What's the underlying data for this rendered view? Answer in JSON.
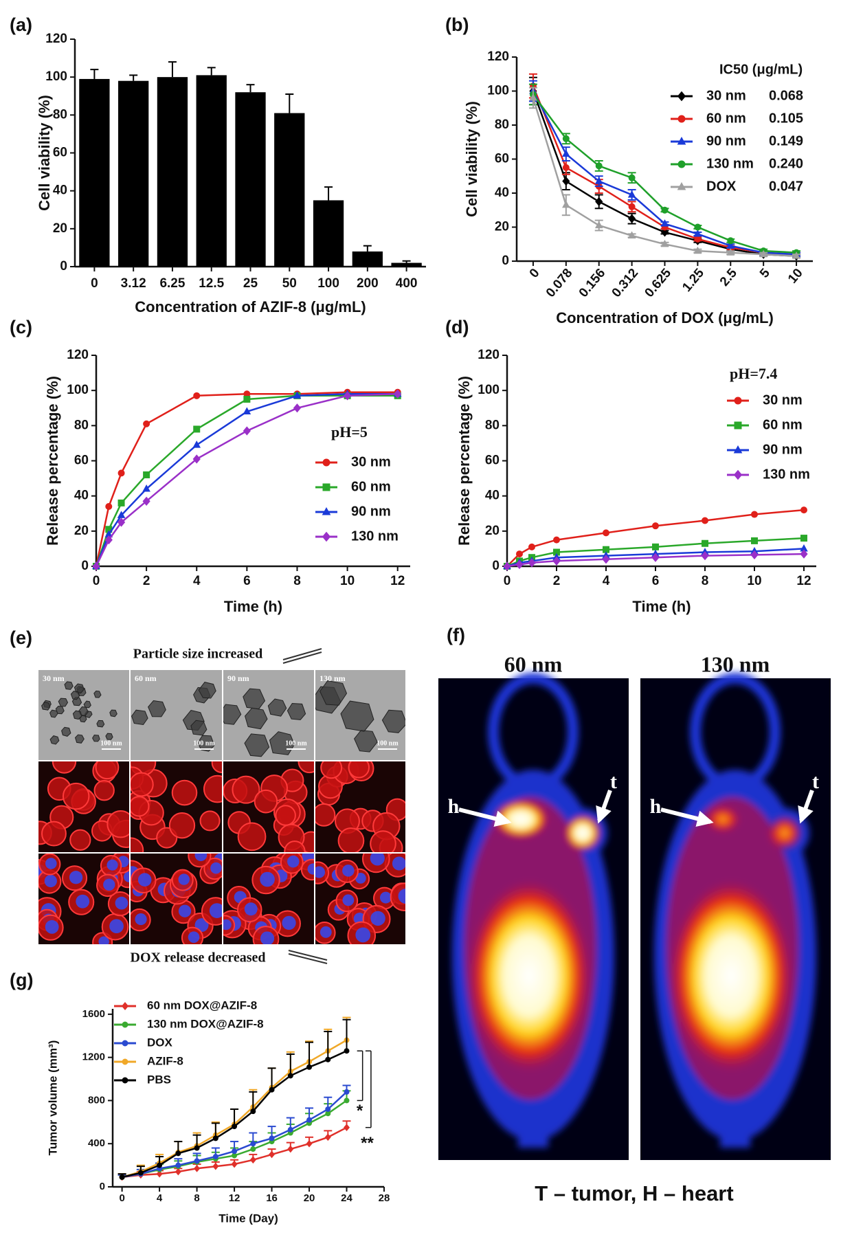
{
  "chart_data": [
    {
      "type": "bar",
      "panel_label": "(a)",
      "x_label": "Concentration of AZIF-8 (μg/mL)",
      "y_label": "Cell viability (%)",
      "categories": [
        "0",
        "3.12",
        "6.25",
        "12.5",
        "25",
        "50",
        "100",
        "200",
        "400"
      ],
      "values": [
        99,
        98,
        100,
        101,
        92,
        81,
        35,
        8,
        2
      ],
      "errors": [
        5,
        3,
        8,
        4,
        4,
        10,
        7,
        3,
        1
      ],
      "error_bars": "up",
      "color": "#000000",
      "ylim": [
        0,
        120
      ],
      "yticks": [
        0,
        20,
        40,
        60,
        80,
        100,
        120
      ]
    },
    {
      "type": "line",
      "panel_label": "(b)",
      "x_label": "Concentration of DOX (μg/mL)",
      "y_label": "Cell viability (%)",
      "categories": [
        "0",
        "0.078",
        "0.156",
        "0.312",
        "0.625",
        "1.25",
        "2.5",
        "5",
        "10"
      ],
      "ylim": [
        0,
        120
      ],
      "yticks": [
        0,
        20,
        40,
        60,
        80,
        100,
        120
      ],
      "legend": "upper right",
      "legend_title": "IC50 (μg/mL)",
      "error_bars": "both",
      "series": [
        {
          "name": "30 nm",
          "ic50": "0.068",
          "color": "#000000",
          "marker": "diamond",
          "values": [
            100,
            47,
            35,
            25,
            17,
            12,
            7,
            4,
            3
          ],
          "errors": [
            8,
            5,
            4,
            3,
            1,
            1,
            1,
            1,
            1
          ]
        },
        {
          "name": "60 nm",
          "ic50": "0.105",
          "color": "#e0201a",
          "marker": "circle",
          "values": [
            103,
            55,
            44,
            32,
            20,
            13,
            8,
            5,
            4
          ],
          "errors": [
            7,
            4,
            4,
            3,
            1,
            1,
            1,
            1,
            1
          ]
        },
        {
          "name": "90 nm",
          "ic50": "0.149",
          "color": "#1a3ad8",
          "marker": "triangle",
          "values": [
            100,
            63,
            47,
            39,
            22,
            16,
            9,
            5,
            4
          ],
          "errors": [
            6,
            4,
            3,
            3,
            1,
            1,
            1,
            1,
            1
          ]
        },
        {
          "name": "130 nm",
          "ic50": "0.240",
          "color": "#1fa02a",
          "marker": "circle",
          "values": [
            98,
            72,
            56,
            49,
            30,
            20,
            12,
            6,
            5
          ],
          "errors": [
            6,
            3,
            3,
            3,
            1,
            1,
            1,
            1,
            1
          ]
        },
        {
          "name": "DOX",
          "ic50": "0.047",
          "color": "#a0a0a0",
          "marker": "triangle",
          "values": [
            96,
            33,
            21,
            15,
            10,
            6,
            5,
            4,
            3
          ],
          "errors": [
            6,
            6,
            3,
            1,
            1,
            1,
            1,
            1,
            1
          ]
        }
      ]
    },
    {
      "type": "line",
      "panel_label": "(c)",
      "x_label": "Time (h)",
      "y_label": "Release percentage (%)",
      "x": [
        0,
        0.5,
        1,
        2,
        4,
        6,
        8,
        10,
        12
      ],
      "xlim": [
        0,
        12.5
      ],
      "xticks": [
        0,
        2,
        4,
        6,
        8,
        10,
        12
      ],
      "ylim": [
        0,
        120
      ],
      "yticks": [
        0,
        20,
        40,
        60,
        80,
        100,
        120
      ],
      "legend": "lower right",
      "legend_title": "pH=5",
      "series": [
        {
          "name": "30 nm",
          "color": "#e0201a",
          "marker": "circle",
          "values": [
            0,
            34,
            53,
            81,
            97,
            98,
            98,
            99,
            99
          ]
        },
        {
          "name": "60 nm",
          "color": "#2aa82a",
          "marker": "square",
          "values": [
            0,
            21,
            36,
            52,
            78,
            95,
            97,
            97,
            97
          ]
        },
        {
          "name": "90 nm",
          "color": "#1a3ad8",
          "marker": "triangle",
          "values": [
            0,
            18,
            29,
            44,
            69,
            88,
            97,
            98,
            98
          ]
        },
        {
          "name": "130 nm",
          "color": "#9a30c8",
          "marker": "diamond",
          "values": [
            0,
            15,
            25,
            37,
            61,
            77,
            90,
            97,
            98
          ]
        }
      ]
    },
    {
      "type": "line",
      "panel_label": "(d)",
      "x_label": "Time (h)",
      "y_label": "Release percentage (%)",
      "x": [
        0,
        0.5,
        1,
        2,
        4,
        6,
        8,
        10,
        12
      ],
      "xlim": [
        0,
        12.5
      ],
      "xticks": [
        0,
        2,
        4,
        6,
        8,
        10,
        12
      ],
      "ylim": [
        0,
        120
      ],
      "yticks": [
        0,
        20,
        40,
        60,
        80,
        100,
        120
      ],
      "legend": "upper right",
      "legend_title": "pH=7.4",
      "series": [
        {
          "name": "30 nm",
          "color": "#e0201a",
          "marker": "circle",
          "values": [
            0,
            7,
            11,
            15,
            19,
            23,
            26,
            29.5,
            32
          ]
        },
        {
          "name": "60 nm",
          "color": "#2aa82a",
          "marker": "square",
          "values": [
            0,
            3,
            5,
            8,
            9.5,
            11,
            13,
            14.5,
            16
          ]
        },
        {
          "name": "90 nm",
          "color": "#1a3ad8",
          "marker": "triangle",
          "values": [
            0,
            2,
            3,
            5,
            6,
            7,
            8,
            8.5,
            10
          ]
        },
        {
          "name": "130 nm",
          "color": "#9a30c8",
          "marker": "diamond",
          "values": [
            0,
            1,
            2,
            3,
            4,
            5,
            6,
            6.5,
            7
          ]
        }
      ]
    },
    {
      "type": "line",
      "panel_label": "(g)",
      "x_label": "Time (Day)",
      "y_label": "Tumor volume (mm³)",
      "x": [
        0,
        2,
        4,
        6,
        8,
        10,
        12,
        14,
        16,
        18,
        20,
        22,
        24
      ],
      "xlim": [
        -1,
        28
      ],
      "xticks": [
        0,
        4,
        8,
        12,
        16,
        20,
        24,
        28
      ],
      "ylim": [
        0,
        1650
      ],
      "yticks": [
        0,
        400,
        800,
        1200,
        1600
      ],
      "legend": "upper left",
      "error_bars": "up",
      "annotations": [
        "*",
        "**"
      ],
      "series": [
        {
          "name": "60 nm DOX@AZIF-8",
          "color": "#e0302a",
          "marker": "diamond",
          "values": [
            90,
            110,
            120,
            140,
            170,
            190,
            210,
            250,
            300,
            350,
            400,
            460,
            550
          ],
          "errors": [
            20,
            30,
            30,
            30,
            40,
            40,
            40,
            50,
            50,
            60,
            60,
            60,
            60
          ]
        },
        {
          "name": "130 nm DOX@AZIF-8",
          "color": "#3aaa30",
          "marker": "circle",
          "values": [
            90,
            120,
            160,
            190,
            230,
            260,
            290,
            350,
            420,
            500,
            590,
            680,
            800
          ],
          "errors": [
            20,
            40,
            50,
            50,
            60,
            60,
            70,
            70,
            80,
            80,
            90,
            90,
            90
          ]
        },
        {
          "name": "DOX",
          "color": "#2a4ad0",
          "marker": "circle",
          "values": [
            90,
            120,
            170,
            200,
            240,
            280,
            330,
            400,
            450,
            530,
            620,
            720,
            880
          ],
          "errors": [
            20,
            40,
            50,
            60,
            70,
            80,
            90,
            100,
            110,
            110,
            110,
            110,
            60
          ]
        },
        {
          "name": "AZIF-8",
          "color": "#f0a828",
          "marker": "circle",
          "values": [
            90,
            140,
            220,
            320,
            380,
            480,
            580,
            740,
            920,
            1070,
            1160,
            1260,
            1360
          ],
          "errors": [
            30,
            60,
            80,
            100,
            120,
            120,
            140,
            160,
            180,
            180,
            190,
            200,
            210
          ]
        },
        {
          "name": "PBS",
          "color": "#000000",
          "marker": "circle",
          "values": [
            90,
            130,
            200,
            310,
            360,
            450,
            560,
            700,
            900,
            1030,
            1110,
            1180,
            1260
          ],
          "errors": [
            30,
            60,
            80,
            110,
            120,
            140,
            160,
            180,
            200,
            200,
            230,
            260,
            290
          ]
        }
      ]
    }
  ],
  "figure_e": {
    "label": "(e)",
    "top_caption": "Particle size increased",
    "bottom_caption": "DOX release decreased",
    "columns": [
      "30 nm",
      "60 nm",
      "90 nm",
      "130 nm"
    ],
    "scale_bar": "100 nm"
  },
  "figure_f": {
    "label": "(f)",
    "panels": [
      "60 nm",
      "130 nm"
    ],
    "heart": "h",
    "tumor": "t",
    "caption": "T – tumor, H – heart"
  }
}
